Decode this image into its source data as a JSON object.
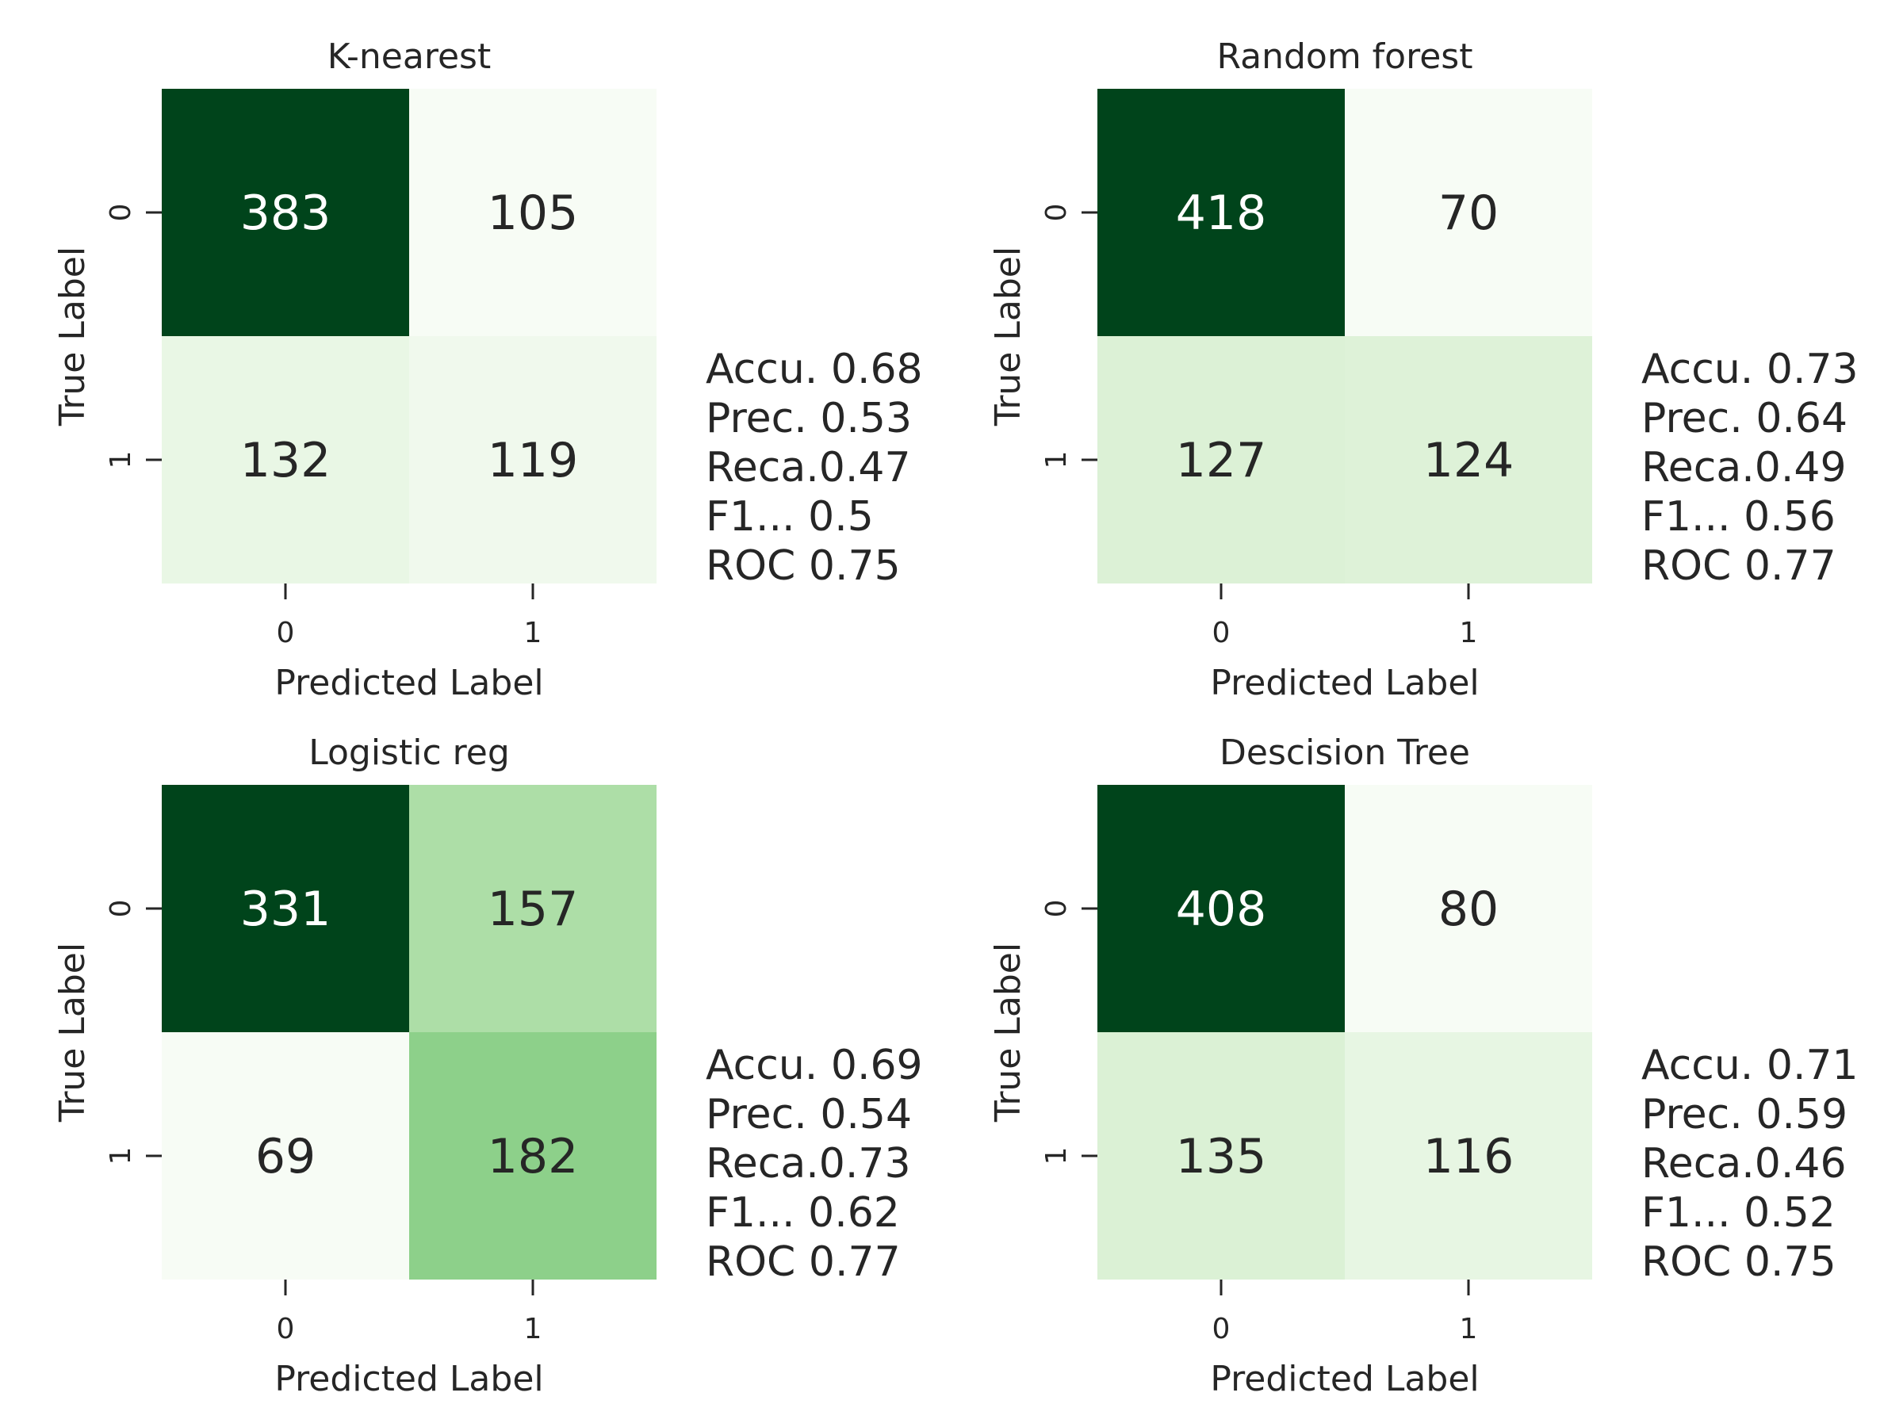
{
  "chart_data": [
    {
      "type": "heatmap",
      "title": "K-nearest",
      "xlabel": "Predicted Label",
      "ylabel": "True Label",
      "x_ticks": [
        "0",
        "1"
      ],
      "y_ticks": [
        "0",
        "1"
      ],
      "matrix": [
        [
          383,
          105
        ],
        [
          132,
          119
        ]
      ],
      "metrics": [
        "Accu. 0.68",
        "Prec. 0.53",
        "Reca.0.47",
        "F1... 0.5",
        "ROC 0.75"
      ]
    },
    {
      "type": "heatmap",
      "title": "Random forest",
      "xlabel": "Predicted Label",
      "ylabel": "True Label",
      "x_ticks": [
        "0",
        "1"
      ],
      "y_ticks": [
        "0",
        "1"
      ],
      "matrix": [
        [
          418,
          70
        ],
        [
          127,
          124
        ]
      ],
      "metrics": [
        "Accu. 0.73",
        "Prec. 0.64",
        "Reca.0.49",
        "F1... 0.56",
        "ROC 0.77"
      ]
    },
    {
      "type": "heatmap",
      "title": "Logistic reg",
      "xlabel": "Predicted Label",
      "ylabel": "True Label",
      "x_ticks": [
        "0",
        "1"
      ],
      "y_ticks": [
        "0",
        "1"
      ],
      "matrix": [
        [
          331,
          157
        ],
        [
          69,
          182
        ]
      ],
      "metrics": [
        "Accu. 0.69",
        "Prec. 0.54",
        "Reca.0.73",
        "F1... 0.62",
        "ROC 0.77"
      ]
    },
    {
      "type": "heatmap",
      "title": "Descision Tree",
      "xlabel": "Predicted Label",
      "ylabel": "True Label",
      "x_ticks": [
        "0",
        "1"
      ],
      "y_ticks": [
        "0",
        "1"
      ],
      "matrix": [
        [
          408,
          80
        ],
        [
          135,
          116
        ]
      ],
      "metrics": [
        "Accu. 0.71",
        "Prec. 0.59",
        "Reca.0.46",
        "F1... 0.52",
        "ROC 0.75"
      ]
    }
  ],
  "colormap": {
    "name": "Greens",
    "low": "#f7fcf5",
    "high": "#00441b"
  }
}
